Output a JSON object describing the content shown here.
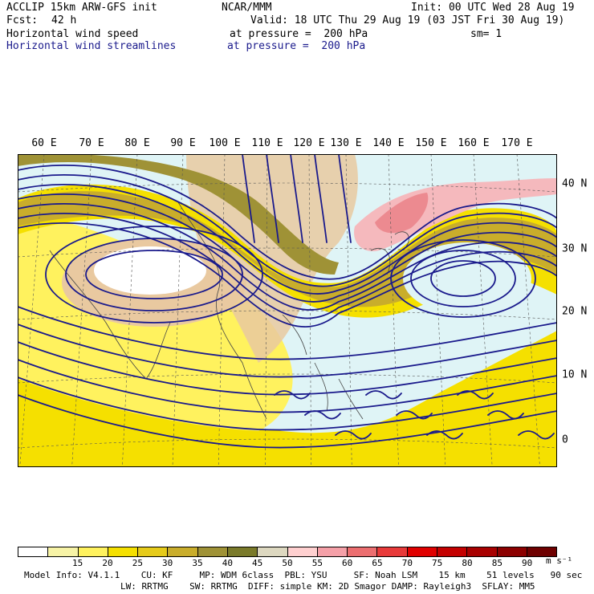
{
  "header": {
    "model": "ACCLIP 15km ARW-GFS init",
    "center": "NCAR/MMM",
    "init": "Init: 00 UTC Wed 28 Aug 19",
    "fcst_label": "Fcst:",
    "fcst_value": "42 h",
    "valid": "Valid: 18 UTC Thu 29 Aug 19 (03 JST Fri 30 Aug 19)",
    "field1": "Horizontal wind speed",
    "field1_level": "at pressure =  200 hPa",
    "field1_smooth": "sm= 1",
    "field2": "Horizontal wind streamlines",
    "field2_level": "at pressure =  200 hPa"
  },
  "map": {
    "lon_labels": [
      "60 E",
      "70 E",
      "80 E",
      "90 E",
      "100 E",
      "110 E",
      "120 E",
      "130 E",
      "140 E",
      "150 E",
      "160 E",
      "170 E"
    ],
    "lat_labels": [
      "40 N",
      "30 N",
      "20 N",
      "10 N",
      "0"
    ],
    "colors": {
      "ocean_calm": "#dff4f6",
      "speed_15": "#f7f3a6",
      "speed_20": "#fff25e",
      "speed_25": "#f5e000",
      "speed_30": "#e6cb1a",
      "speed_35": "#c9ad2b",
      "speed_40": "#9f9236",
      "land": "#e9c9a0",
      "streamline": "#1a1a8c"
    }
  },
  "colorbar": {
    "labels": [
      "15",
      "20",
      "25",
      "30",
      "35",
      "40",
      "45",
      "50",
      "55",
      "60",
      "65",
      "70",
      "75",
      "80",
      "85",
      "90"
    ],
    "units": "m s⁻¹",
    "colors": [
      "#ffffff",
      "#f7f3a6",
      "#fff25e",
      "#f5e000",
      "#e6cb1a",
      "#c9ad2b",
      "#9f9236",
      "#7a7a2a",
      "#ddd8c0",
      "#ffd0d0",
      "#f5a0a8",
      "#ec6e70",
      "#e83a3a",
      "#e00000",
      "#c40000",
      "#a80000",
      "#8c0000",
      "#6e0000"
    ]
  },
  "footer": {
    "line1": "Model Info: V4.1.1    CU: KF     MP: WDM 6class  PBL: YSU     SF: Noah LSM    15 km    51 levels   90 sec",
    "line2": "LW: RRTMG    SW: RRTMG  DIFF: simple KM: 2D Smagor DAMP: Rayleigh3  SFLAY: MM5"
  }
}
